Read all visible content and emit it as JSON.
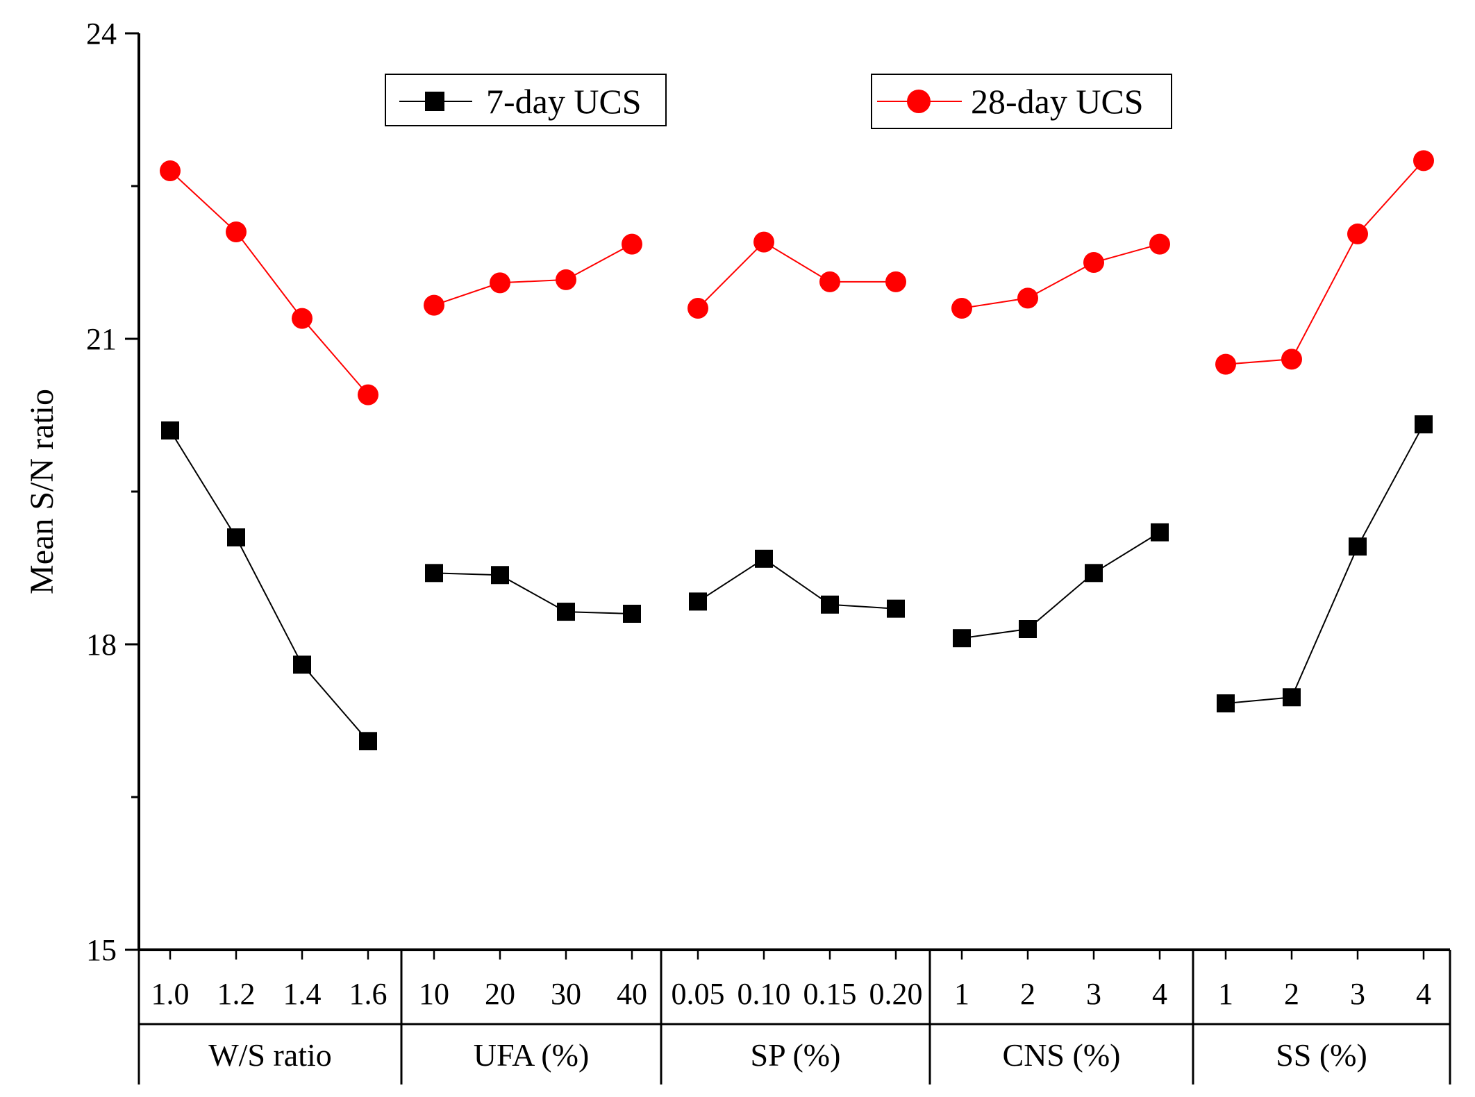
{
  "chart_data": {
    "type": "line",
    "ylabel": "Mean S/N ratio",
    "ylim": [
      15,
      24
    ],
    "yticks": [
      "24",
      "21",
      "18",
      "15"
    ],
    "colors": {
      "s7": "#000000",
      "s28": "#ff0000"
    },
    "legend": [
      {
        "key": "s7",
        "name": "7-day UCS",
        "marker": "square"
      },
      {
        "key": "s28",
        "name": "28-day UCS",
        "marker": "circle"
      }
    ],
    "groups": [
      {
        "name": "W/S ratio",
        "levels": [
          "1.0",
          "1.2",
          "1.4",
          "1.6"
        ],
        "s7": [
          20.1,
          19.05,
          17.8,
          17.05
        ],
        "s28": [
          22.65,
          22.05,
          21.2,
          20.45
        ]
      },
      {
        "name": "UFA (%)",
        "levels": [
          "10",
          "20",
          "30",
          "40"
        ],
        "s7": [
          18.7,
          18.68,
          18.32,
          18.3
        ],
        "s28": [
          21.33,
          21.55,
          21.58,
          21.93
        ]
      },
      {
        "name": "SP (%)",
        "levels": [
          "0.05",
          "0.10",
          "0.15",
          "0.20"
        ],
        "s7": [
          18.42,
          18.84,
          18.39,
          18.35
        ],
        "s28": [
          21.3,
          21.95,
          21.56,
          21.56
        ]
      },
      {
        "name": "CNS (%)",
        "levels": [
          "1",
          "2",
          "3",
          "4"
        ],
        "s7": [
          18.06,
          18.15,
          18.7,
          19.1
        ],
        "s28": [
          21.3,
          21.4,
          21.75,
          21.93
        ]
      },
      {
        "name": "SS (%)",
        "levels": [
          "1",
          "2",
          "3",
          "4"
        ],
        "s7": [
          17.42,
          17.48,
          18.96,
          20.16
        ],
        "s28": [
          20.75,
          20.8,
          22.03,
          22.75
        ]
      }
    ]
  }
}
